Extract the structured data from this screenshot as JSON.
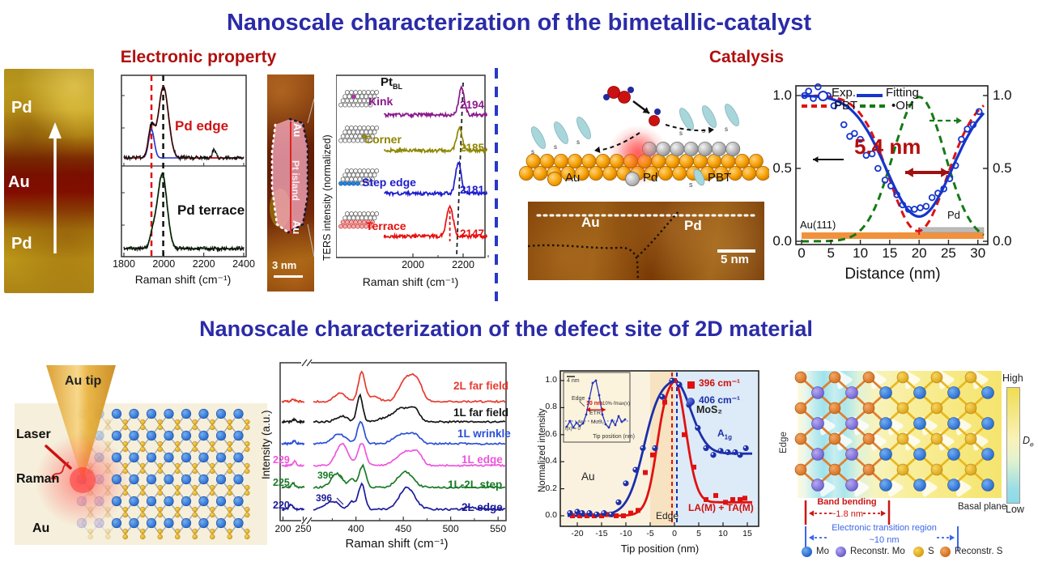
{
  "titles": {
    "top": "Nanoscale characterization of the bimetallic-catalyst",
    "electronic": "Electronic property",
    "catalysis": "Catalysis",
    "bottom": "Nanoscale characterization of the defect site of 2D material"
  },
  "panel_afm": {
    "pd_top": "Pd",
    "au": "Au",
    "pd_bottom": "Pd"
  },
  "panel_pd_raman": {
    "top_label": "Pd edge",
    "bottom_label": "Pd terrace",
    "xlabel": "Raman shift (cm⁻¹)",
    "xticks": [
      "1800",
      "2000",
      "2200",
      "2400"
    ]
  },
  "panel_pt_island": {
    "au_top": "Au",
    "island": "Pt island",
    "au_bottom": "Au",
    "scalebar": "3 nm"
  },
  "panel_ters": {
    "ylabel": "TERS intensity (normalized)",
    "title": "Pt",
    "title_sub": "BL",
    "xlabel": "Raman shift (cm⁻¹)",
    "xticks": [
      "2000",
      "2200"
    ],
    "rows": [
      {
        "label": "Kink",
        "value": "2194",
        "color": "#8b1a8b",
        "type": "kink"
      },
      {
        "label": "Corner",
        "value": "2185",
        "color": "#8f8600",
        "type": "corner"
      },
      {
        "label": "Step edge",
        "value": "2181",
        "color": "#1c1cce",
        "type": "step"
      },
      {
        "label": "Terrace",
        "value": "2147",
        "color": "#e8100e",
        "type": "terrace"
      }
    ]
  },
  "panel_catalysis": {
    "legend": [
      "Au",
      "Pd",
      "PBT"
    ],
    "s_label": "s"
  },
  "panel_stm": {
    "au": "Au",
    "pd": "Pd",
    "scalebar": "5 nm"
  },
  "panel_profile": {
    "legend": [
      "Exp.",
      "Fitting",
      "PBT",
      "•OH"
    ],
    "annotation": "5.4 nm",
    "au111": "Au(111)",
    "pd": "Pd",
    "xlabel": "Distance (nm)",
    "xticks": [
      "0",
      "5",
      "10",
      "15",
      "20",
      "25",
      "30"
    ],
    "yticks": [
      "1.0",
      "0.5",
      "0.0"
    ],
    "yticks_right": [
      "1.0",
      "0.5",
      "0.0"
    ]
  },
  "panel_schematic": {
    "au_tip": "Au tip",
    "laser": "Laser",
    "raman": "Raman",
    "au": "Au"
  },
  "panel_mos2": {
    "ylabel": "Intensity (a.u.)",
    "xlabel": "Raman shift (cm⁻¹)",
    "xticks": [
      "200",
      "250",
      "400",
      "450",
      "500",
      "550"
    ],
    "traces": [
      {
        "label": "2L far field",
        "color": "#e8392f"
      },
      {
        "label": "1L far field",
        "color": "#151515"
      },
      {
        "label": "1L wrinkle",
        "color": "#2a4fd6"
      },
      {
        "label": "1L edge",
        "color": "#ee55dd",
        "left_value": "229"
      },
      {
        "label": "1L-2L step",
        "color": "#1a7a28",
        "left_value": "225",
        "note": "396"
      },
      {
        "label": "2L edge",
        "color": "#1b1b99",
        "left_value": "220",
        "note": "396"
      }
    ]
  },
  "panel_tip_plot": {
    "ylabel": "Normalized intensity",
    "xlabel": "Tip position (nm)",
    "legend": [
      "396 cm⁻¹",
      "406 cm⁻¹"
    ],
    "labels": {
      "au": "Au",
      "mos2": "MoS₂",
      "a1g_main": "A",
      "a1g_sub": "1g",
      "lam": "LA(M) + TA(M)",
      "edge": "Edge"
    },
    "yticks": [
      "1.0",
      "0.8",
      "0.6",
      "0.4",
      "0.2",
      "0.0"
    ],
    "xticks": [
      "-20",
      "-15",
      "-10",
      "-5",
      "0",
      "5",
      "10",
      "15"
    ],
    "inset": {
      "scalebar": "4 nm",
      "edge": "Edge",
      "ten_nm": "10 nm",
      "etr": "ETR",
      "au": "Au",
      "mos2": "MoS₂",
      "fx": "f(x) = 0",
      "fmax": "10%·fmax(x)",
      "xlabel": "Tip position (nm)"
    }
  },
  "panel_lattice": {
    "edge": "Edge",
    "band_bending_1": "Band bending",
    "band_bending_2": "~1.8 nm",
    "etr_1": "Electronic transition region",
    "etr_2": "~10 nm",
    "basal": "Basal plane",
    "high": "High",
    "low": "Low",
    "d_main": "D",
    "d_sub": "e",
    "legend": [
      "Mo",
      "Reconstr. Mo",
      "S",
      "Reconstr. S"
    ]
  },
  "chart_data": {
    "pd_raman": {
      "type": "line",
      "xlabel": "Raman shift (cm⁻¹)",
      "xlim": [
        1800,
        2400
      ],
      "dashed_lines_cm": [
        1938,
        1997
      ],
      "panels": [
        {
          "label": "Pd edge",
          "fit_peaks": [
            {
              "c": 1998,
              "w": 25,
              "a": 1.0
            },
            {
              "c": 1938,
              "w": 15,
              "a": 0.43
            }
          ],
          "component_peak": {
            "c": 1938,
            "w": 14,
            "a": 0.4
          },
          "extra_bump": {
            "c": 2253,
            "w": 10,
            "a": 0.11
          }
        },
        {
          "label": "Pd terrace",
          "fit_peaks": [
            {
              "c": 1992,
              "w": 24,
              "a": 1.0
            },
            {
              "c": 1945,
              "w": 15,
              "a": 0.18
            }
          ]
        }
      ]
    },
    "ters": {
      "type": "line",
      "xlabel": "Raman shift (cm⁻¹)",
      "xlim": [
        1885,
        2295
      ],
      "series": [
        {
          "label": "Kink",
          "peak_cm": 2194
        },
        {
          "label": "Corner",
          "peak_cm": 2185
        },
        {
          "label": "Step edge",
          "peak_cm": 2181
        },
        {
          "label": "Terrace",
          "peak_cm": 2147
        }
      ]
    },
    "profile": {
      "type": "line+scatter",
      "xlabel": "Distance (nm)",
      "xlim": [
        0,
        31
      ],
      "ylim": [
        0,
        1.05
      ],
      "annotation_width_nm": 5.4,
      "exp_points": [
        [
          0.5,
          1.0
        ],
        [
          1.2,
          1.03
        ],
        [
          2.0,
          0.98
        ],
        [
          2.8,
          1.06
        ],
        [
          3.6,
          0.99
        ],
        [
          4.5,
          1.0
        ],
        [
          5.5,
          0.93
        ],
        [
          6.3,
          0.95
        ],
        [
          7.2,
          0.8
        ],
        [
          8.2,
          0.72
        ],
        [
          9.0,
          0.74
        ],
        [
          10.0,
          0.7
        ],
        [
          11.0,
          0.59
        ],
        [
          12.0,
          0.6
        ],
        [
          13.0,
          0.5
        ],
        [
          14.2,
          0.42
        ],
        [
          15.2,
          0.38
        ],
        [
          16.2,
          0.32
        ],
        [
          17.2,
          0.25
        ],
        [
          18.2,
          0.22
        ],
        [
          19.2,
          0.22
        ],
        [
          20.2,
          0.23
        ],
        [
          21.2,
          0.24
        ],
        [
          22.2,
          0.3
        ],
        [
          23.2,
          0.33
        ],
        [
          24.2,
          0.36
        ],
        [
          25.2,
          0.43
        ],
        [
          26.2,
          0.52
        ],
        [
          27.2,
          0.7
        ],
        [
          28.2,
          0.77
        ],
        [
          29.2,
          0.8
        ],
        [
          30.2,
          0.89
        ]
      ],
      "fitting": {
        "center": 20,
        "sigma": 5.6,
        "depth": 0.83,
        "base": 1.0
      },
      "pbt": {
        "center": 19.8,
        "sigma": 4.9,
        "depth": 0.93,
        "base": 1.0
      },
      "oh": {
        "center": 20,
        "sigma": 4.4,
        "amp": 0.99
      },
      "au_bar_nm": [
        0,
        31
      ],
      "pd_bar_nm": [
        20,
        31
      ]
    },
    "mos2": {
      "type": "line",
      "x_break": [
        253,
        355
      ],
      "traces": [
        {
          "label": "2L far field",
          "left_peaks": [
            {
              "c": 225,
              "w": 4,
              "a": 3
            }
          ],
          "peaks": [
            {
              "c": 383,
              "w": 6,
              "a": 10
            },
            {
              "c": 406,
              "w": 3.5,
              "a": 36
            },
            {
              "c": 418,
              "w": 6,
              "a": 6
            },
            {
              "c": 452,
              "w": 7,
              "a": 26
            },
            {
              "c": 464,
              "w": 6,
              "a": 25
            }
          ]
        },
        {
          "label": "1L far field",
          "left_peaks": [
            {
              "c": 227,
              "w": 4,
              "a": 3
            }
          ],
          "peaks": [
            {
              "c": 385,
              "w": 6,
              "a": 7
            },
            {
              "c": 404,
              "w": 3,
              "a": 33
            },
            {
              "c": 430,
              "w": 8,
              "a": 4
            },
            {
              "c": 448,
              "w": 8,
              "a": 17
            },
            {
              "c": 462,
              "w": 5,
              "a": 15
            }
          ]
        },
        {
          "label": "1L wrinkle",
          "left_peaks": [
            {
              "c": 228,
              "w": 4,
              "a": 3
            }
          ],
          "peaks": [
            {
              "c": 382,
              "w": 7,
              "a": 12
            },
            {
              "c": 405,
              "w": 3.5,
              "a": 28
            },
            {
              "c": 450,
              "w": 9,
              "a": 12
            },
            {
              "c": 463,
              "w": 5,
              "a": 8
            }
          ]
        },
        {
          "label": "1L edge",
          "left_peaks": [
            {
              "c": 229,
              "w": 4,
              "a": 5
            }
          ],
          "peaks": [
            {
              "c": 385,
              "w": 6,
              "a": 27
            },
            {
              "c": 406,
              "w": 4,
              "a": 28
            },
            {
              "c": 452,
              "w": 9,
              "a": 17
            },
            {
              "c": 465,
              "w": 5,
              "a": 12
            }
          ]
        },
        {
          "label": "1L-2L step",
          "left_peaks": [
            {
              "c": 225,
              "w": 4,
              "a": 5
            }
          ],
          "peaks": [
            {
              "c": 380,
              "w": 6,
              "a": 17
            },
            {
              "c": 396,
              "w": 3,
              "a": 10
            },
            {
              "c": 407,
              "w": 3.5,
              "a": 27
            },
            {
              "c": 452,
              "w": 8,
              "a": 19
            }
          ]
        },
        {
          "label": "2L edge",
          "left_peaks": [
            {
              "c": 220,
              "w": 4,
              "a": 6
            }
          ],
          "peaks": [
            {
              "c": 375,
              "w": 7,
              "a": 10
            },
            {
              "c": 396,
              "w": 3,
              "a": 9
            },
            {
              "c": 406,
              "w": 3.5,
              "a": 31
            },
            {
              "c": 454,
              "w": 8,
              "a": 27
            },
            {
              "c": 520,
              "w": 4,
              "a": 3
            }
          ]
        }
      ]
    },
    "tip": {
      "type": "line+scatter",
      "xlabel": "Tip position (nm)",
      "xlim": [
        -22,
        16
      ],
      "ylim": [
        0,
        1.05
      ],
      "red_points": [
        [
          -21,
          0
        ],
        [
          -19.5,
          0
        ],
        [
          -18,
          0
        ],
        [
          -16.5,
          0
        ],
        [
          -15,
          0
        ],
        [
          -13.5,
          0.01
        ],
        [
          -12,
          0
        ],
        [
          -10.5,
          0
        ],
        [
          -9,
          0.02
        ],
        [
          -7.5,
          0.04
        ],
        [
          -6,
          0.32
        ],
        [
          -4.5,
          0.45
        ],
        [
          -2,
          0.84
        ],
        [
          0,
          1.0
        ],
        [
          2,
          0.6
        ],
        [
          4,
          0.36
        ],
        [
          6.5,
          0.12
        ],
        [
          8.5,
          0.15
        ],
        [
          10.5,
          0.1
        ],
        [
          12,
          0.12
        ],
        [
          13.5,
          0.12
        ],
        [
          14.5,
          0.13
        ]
      ],
      "blue_points": [
        [
          -21.5,
          0.02
        ],
        [
          -20,
          0.03
        ],
        [
          -19,
          0.02
        ],
        [
          -17.5,
          0.02
        ],
        [
          -16,
          0.01
        ],
        [
          -14.5,
          0.02
        ],
        [
          -13,
          0.01
        ],
        [
          -11.5,
          0.1
        ],
        [
          -10,
          0.24
        ],
        [
          -8,
          0.34
        ],
        [
          -6.5,
          0.5
        ],
        [
          -4,
          0.5
        ],
        [
          -2.5,
          0.88
        ],
        [
          -0.5,
          1.0
        ],
        [
          1,
          0.97
        ],
        [
          3,
          0.82
        ],
        [
          4.8,
          0.65
        ],
        [
          6.5,
          0.5
        ],
        [
          8,
          0.45
        ],
        [
          9.5,
          0.48
        ],
        [
          11,
          0.47
        ],
        [
          12.5,
          0.47
        ],
        [
          13.5,
          0.45
        ],
        [
          14.7,
          0.5
        ]
      ],
      "red_curve": {
        "rise_center": -3.6,
        "rise_width": 1.1,
        "fall_sigma": 2.3,
        "plateau": 0.1
      },
      "blue_curve": {
        "rise_center": -6.3,
        "rise_width": 1.7,
        "fall_sigma": 3.3,
        "plateau": 0.46
      }
    }
  }
}
